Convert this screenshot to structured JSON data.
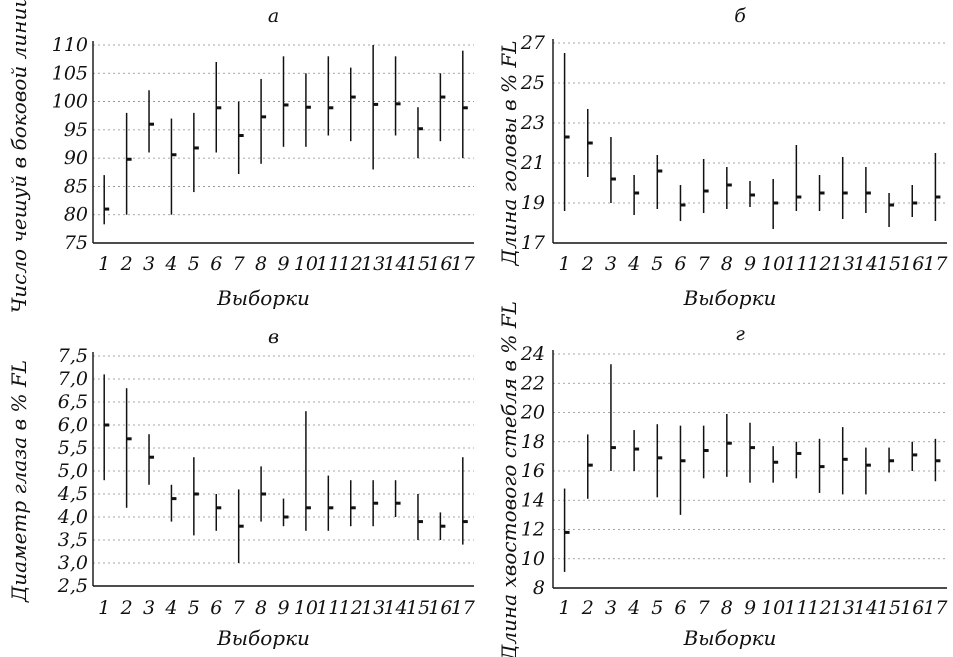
{
  "chart_data": [
    {
      "type": "errorbar",
      "panel_label": "а",
      "title": "",
      "xlabel": "Выборки",
      "ylabel": "Число чешуй в боковой линии",
      "ylim": [
        75,
        110
      ],
      "yticks": [
        "75",
        "80",
        "85",
        "90",
        "95",
        "100",
        "105",
        "110"
      ],
      "categories": [
        "1",
        "2",
        "3",
        "4",
        "5",
        "6",
        "7",
        "8",
        "9",
        "10",
        "11",
        "12",
        "13",
        "14",
        "15",
        "16",
        "17"
      ],
      "mean": [
        81,
        89.8,
        96,
        90.6,
        91.8,
        98.9,
        94,
        97.3,
        99.4,
        99,
        98.9,
        100.8,
        99.5,
        99.6,
        95.2,
        100.8,
        98.9
      ],
      "min": [
        78.3,
        80,
        91,
        80,
        84,
        91,
        87.2,
        89,
        92,
        92,
        94,
        93,
        88,
        94,
        90,
        93,
        90
      ],
      "max": [
        87,
        98,
        102,
        97,
        98,
        107,
        100,
        104,
        108,
        105,
        108,
        106,
        110,
        108,
        99,
        105,
        109
      ],
      "grid": true
    },
    {
      "type": "errorbar",
      "panel_label": "б",
      "title": "",
      "xlabel": "Выборки",
      "ylabel": "Длина головы в % FL",
      "ylim": [
        17,
        27
      ],
      "yticks": [
        "17",
        "19",
        "21",
        "23",
        "25",
        "27"
      ],
      "categories": [
        "1",
        "2",
        "3",
        "4",
        "5",
        "6",
        "7",
        "8",
        "9",
        "10",
        "11",
        "12",
        "13",
        "14",
        "15",
        "16",
        "17"
      ],
      "mean": [
        22.3,
        22,
        20.2,
        19.5,
        20.6,
        18.9,
        19.6,
        19.9,
        19.4,
        19,
        19.3,
        19.5,
        19.5,
        19.5,
        18.9,
        19,
        19.3
      ],
      "min": [
        18.6,
        20.3,
        19,
        18.4,
        18.7,
        18.1,
        18.5,
        18.7,
        18.8,
        17.7,
        18.6,
        18.6,
        18.2,
        18.5,
        17.8,
        18.3,
        18.1
      ],
      "max": [
        26.5,
        23.7,
        22.3,
        20.4,
        21.4,
        19.9,
        21.2,
        20.8,
        20.1,
        20.2,
        21.9,
        20.4,
        21.3,
        20.8,
        19.5,
        19.9,
        21.5
      ],
      "grid": true
    },
    {
      "type": "errorbar",
      "panel_label": "в",
      "title": "",
      "xlabel": "Выборки",
      "ylabel": "Диаметр глаза в % FL",
      "ylim": [
        2.5,
        7.5
      ],
      "yticks": [
        "2,5",
        "3,0",
        "3,5",
        "4,0",
        "4,5",
        "5,0",
        "5,5",
        "6,0",
        "6,5",
        "7,0",
        "7,5"
      ],
      "categories": [
        "1",
        "2",
        "3",
        "4",
        "5",
        "6",
        "7",
        "8",
        "9",
        "10",
        "11",
        "12",
        "13",
        "14",
        "15",
        "16",
        "17"
      ],
      "mean": [
        6,
        5.7,
        5.3,
        4.4,
        4.5,
        4.2,
        3.8,
        4.5,
        4,
        4.2,
        4.2,
        4.2,
        4.3,
        4.3,
        3.9,
        3.8,
        3.9
      ],
      "min": [
        4.8,
        4.2,
        4.7,
        3.9,
        3.6,
        3.7,
        3,
        3.9,
        3.8,
        3.7,
        3.7,
        3.8,
        3.8,
        4,
        3.5,
        3.5,
        3.4
      ],
      "max": [
        7.1,
        6.8,
        5.8,
        4.7,
        5.3,
        4.5,
        4.6,
        5.1,
        4.4,
        6.3,
        4.9,
        4.8,
        4.8,
        4.8,
        4.5,
        4.1,
        5.3
      ],
      "grid": true
    },
    {
      "type": "errorbar",
      "panel_label": "г",
      "title": "",
      "xlabel": "Выборки",
      "ylabel": "Длина хвостового стебля в % FL",
      "ylim": [
        8,
        24
      ],
      "yticks": [
        "8",
        "10",
        "12",
        "14",
        "16",
        "18",
        "20",
        "22",
        "24"
      ],
      "categories": [
        "1",
        "2",
        "3",
        "4",
        "5",
        "6",
        "7",
        "8",
        "9",
        "10",
        "11",
        "12",
        "13",
        "14",
        "15",
        "16",
        "17"
      ],
      "mean": [
        11.8,
        16.4,
        17.6,
        17.5,
        16.9,
        16.7,
        17.4,
        17.9,
        17.6,
        16.6,
        17.2,
        16.3,
        16.8,
        16.4,
        16.7,
        17.1,
        16.7
      ],
      "min": [
        9.1,
        14.1,
        16,
        16,
        14.2,
        13,
        15.5,
        15.6,
        15.2,
        15.2,
        15.5,
        14.5,
        14.4,
        14.4,
        15.9,
        16,
        15.3
      ],
      "max": [
        14.8,
        18.5,
        23.3,
        18.8,
        19.2,
        19.1,
        19.1,
        19.9,
        19.3,
        17.7,
        18,
        18.2,
        19,
        17.6,
        17.6,
        18,
        18.2
      ],
      "grid": true
    }
  ]
}
